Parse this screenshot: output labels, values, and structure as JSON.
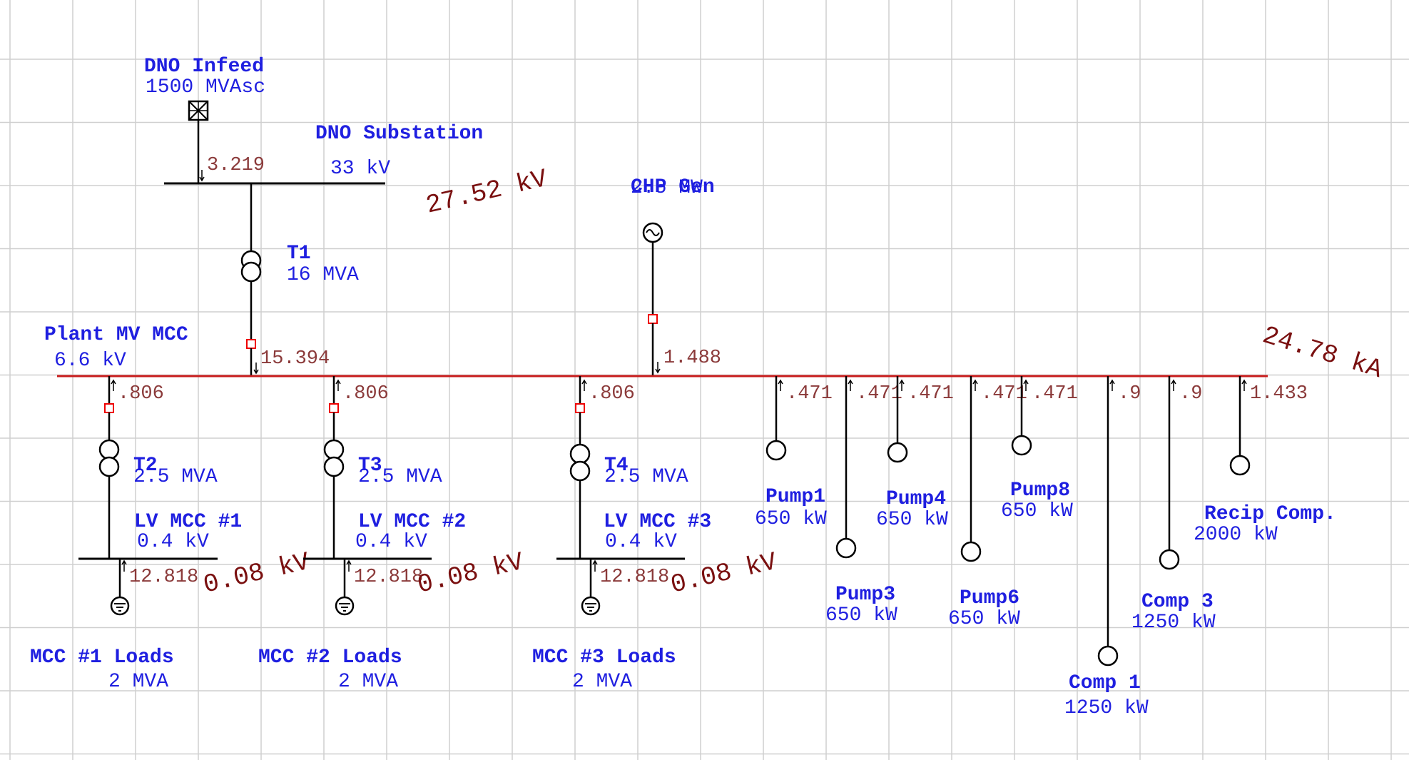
{
  "infeed": {
    "name": "DNO Infeed",
    "rating": "1500 MVAsc",
    "current": "3.219"
  },
  "dno_sub": {
    "name": "DNO Substation",
    "voltage": "33 kV",
    "fault_voltage": "27.52 kV"
  },
  "t1": {
    "name": "T1",
    "rating": "16 MVA",
    "current": "15.394"
  },
  "chp": {
    "name": "CHP Gen",
    "rating": "2.5 MW",
    "current": "1.488"
  },
  "mv_bus": {
    "name": "Plant MV MCC",
    "voltage": "6.6 kV",
    "fault_current": "24.78 kA"
  },
  "feeders": [
    {
      "tx": "T2",
      "tx_rating": "2.5 MVA",
      "hv_current": ".806",
      "bus": "LV MCC #1",
      "bus_voltage": "0.4 kV",
      "lv_current": "12.818",
      "fault_voltage": "0.08 kV",
      "load": "MCC #1 Loads",
      "load_rating": "2 MVA"
    },
    {
      "tx": "T3",
      "tx_rating": "2.5 MVA",
      "hv_current": ".806",
      "bus": "LV MCC #2",
      "bus_voltage": "0.4 kV",
      "lv_current": "12.818",
      "fault_voltage": "0.08 kV",
      "load": "MCC #2 Loads",
      "load_rating": "2 MVA"
    },
    {
      "tx": "T4",
      "tx_rating": "2.5 MVA",
      "hv_current": ".806",
      "bus": "LV MCC #3",
      "bus_voltage": "0.4 kV",
      "lv_current": "12.818",
      "fault_voltage": "0.08 kV",
      "load": "MCC #3 Loads",
      "load_rating": "2 MVA"
    }
  ],
  "motors": [
    {
      "name": "Pump1",
      "rating": "650 kW",
      "current": ".471"
    },
    {
      "name": "Pump3",
      "rating": "650 kW",
      "current": ".471"
    },
    {
      "name": "Pump4",
      "rating": "650 kW",
      "current": ".471"
    },
    {
      "name": "Pump6",
      "rating": "650 kW",
      "current": ".471"
    },
    {
      "name": "Pump8",
      "rating": "650 kW",
      "current": ".471"
    },
    {
      "name": "Comp 1",
      "rating": "1250 kW",
      "current": ".9"
    },
    {
      "name": "Comp 3",
      "rating": "1250 kW",
      "current": ".9"
    },
    {
      "name": "Recip Comp.",
      "rating": "2000 kW",
      "current": "1.433"
    }
  ]
}
